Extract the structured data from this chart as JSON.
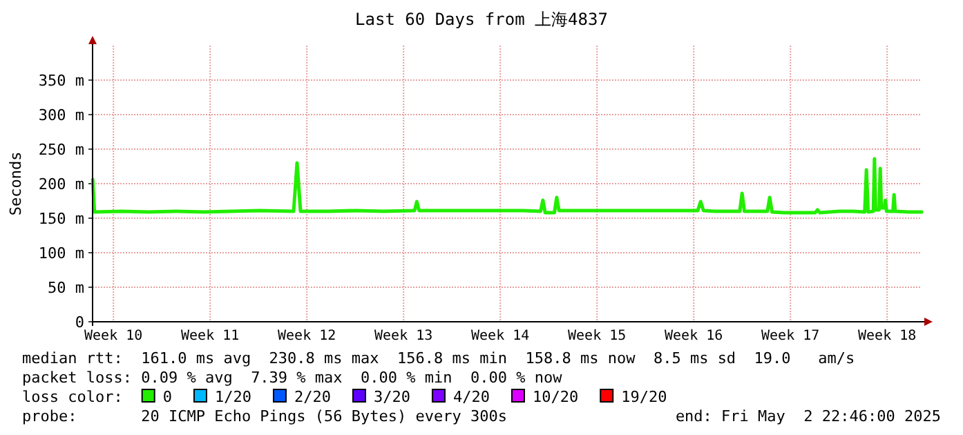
{
  "chart_data": {
    "type": "line",
    "title": "Last 60 Days from 上海4837",
    "ylabel": "Seconds",
    "legend_title": "loss color:",
    "xlim": [
      "2025-03-03T22:46",
      "2025-05-02T22:46"
    ],
    "xticks": [
      {
        "value": "2025-03-05T11:00",
        "label": "Week 10"
      },
      {
        "value": "2025-03-12T11:00",
        "label": "Week 11"
      },
      {
        "value": "2025-03-19T11:00",
        "label": "Week 12"
      },
      {
        "value": "2025-03-26T11:00",
        "label": "Week 13"
      },
      {
        "value": "2025-04-02T11:00",
        "label": "Week 14"
      },
      {
        "value": "2025-04-09T11:00",
        "label": "Week 15"
      },
      {
        "value": "2025-04-16T11:00",
        "label": "Week 16"
      },
      {
        "value": "2025-04-23T11:00",
        "label": "Week 17"
      },
      {
        "value": "2025-04-30T11:00",
        "label": "Week 18"
      }
    ],
    "ylim": [
      0,
      400
    ],
    "yticks": [
      0,
      {
        "value": 50,
        "label": "50 m"
      },
      {
        "value": 100,
        "label": "100 m"
      },
      {
        "value": 150,
        "label": "150 m"
      },
      {
        "value": 200,
        "label": "200 m"
      },
      {
        "value": 250,
        "label": "250 m"
      },
      {
        "value": 300,
        "label": "300 m"
      },
      {
        "value": 350,
        "label": "350 m"
      }
    ],
    "grid": true,
    "legend": "bottom",
    "series": [
      {
        "name": "0",
        "color": "#22ee00",
        "x": [
          "2025-03-03T23:00",
          "2025-03-04T02:00",
          "2025-03-06",
          "2025-03-08",
          "2025-03-10",
          "2025-03-12",
          "2025-03-14",
          "2025-03-16",
          "2025-03-18T12:00",
          "2025-03-18T18:00",
          "2025-03-19T00:00",
          "2025-03-21",
          "2025-03-23",
          "2025-03-25",
          "2025-03-27T06:00",
          "2025-03-27T10:00",
          "2025-03-27T14:00",
          "2025-03-29",
          "2025-03-31",
          "2025-04-02",
          "2025-04-04",
          "2025-04-05T09:00",
          "2025-04-05T13:00",
          "2025-04-05T17:00",
          "2025-04-06T09:00",
          "2025-04-06T13:00",
          "2025-04-06T17:00",
          "2025-04-08",
          "2025-04-10",
          "2025-04-12",
          "2025-04-14",
          "2025-04-16T18:00",
          "2025-04-16T23:00",
          "2025-04-17T04:00",
          "2025-04-18",
          "2025-04-19T19:00",
          "2025-04-19T23:00",
          "2025-04-20T03:00",
          "2025-04-21T19:00",
          "2025-04-21T23:00",
          "2025-04-22T03:00",
          "2025-04-23",
          "2025-04-24",
          "2025-04-25T06:00",
          "2025-04-25T10:00",
          "2025-04-25T14:00",
          "2025-04-27",
          "2025-04-28",
          "2025-04-28T20:00",
          "2025-04-28T23:00",
          "2025-04-29T02:00",
          "2025-04-29T11:00",
          "2025-04-29T13:00",
          "2025-04-29T15:00",
          "2025-04-29T21:00",
          "2025-04-29T23:00",
          "2025-04-30T01:00",
          "2025-04-30T06:00",
          "2025-04-30T08:00",
          "2025-04-30T10:00",
          "2025-04-30T21:00",
          "2025-04-30T23:00",
          "2025-05-01T01:00",
          "2025-05-02",
          "2025-05-02T22:46"
        ],
        "values": [
          206,
          159,
          160,
          159,
          160,
          159,
          160,
          161,
          160,
          230,
          160,
          160,
          161,
          160,
          161,
          174,
          161,
          161,
          161,
          161,
          161,
          160,
          176,
          158,
          158,
          180,
          161,
          161,
          161,
          161,
          161,
          161,
          174,
          161,
          160,
          160,
          186,
          160,
          160,
          180,
          159,
          158,
          158,
          158,
          162,
          158,
          160,
          160,
          159,
          220,
          159,
          160,
          236,
          162,
          162,
          222,
          165,
          165,
          176,
          160,
          160,
          184,
          160,
          159,
          159
        ]
      },
      {
        "name": "1/20",
        "color": "#00b8ff"
      },
      {
        "name": "2/20",
        "color": "#0059ff"
      },
      {
        "name": "3/20",
        "color": "#5e00ff"
      },
      {
        "name": "4/20",
        "color": "#7e00ff"
      },
      {
        "name": "10/20",
        "color": "#dd00ff"
      },
      {
        "name": "19/20",
        "color": "#ff0000"
      }
    ],
    "annotations": [
      "median rtt:  161.0 ms avg  230.8 ms max  156.8 ms min  158.8 ms now  8.5 ms sd  19.0   am/s",
      "packet loss: 0.09 % avg  7.39 % max  0.00 % min  0.00 % now",
      "probe:       20 ICMP Echo Pings (56 Bytes) every 300s",
      "end: Fri May  2 22:46:00 2025"
    ]
  }
}
